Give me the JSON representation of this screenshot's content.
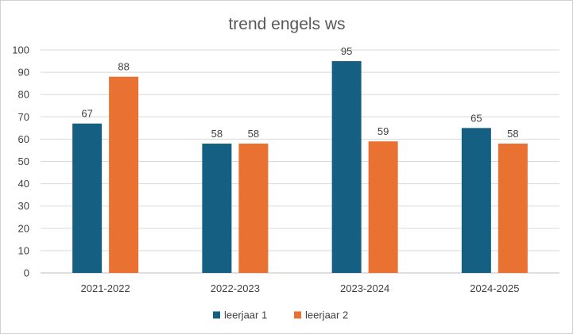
{
  "chart_data": {
    "type": "bar",
    "title": "trend engels ws",
    "categories": [
      "2021-2022",
      "2022-2023",
      "2023-2024",
      "2024-2025"
    ],
    "series": [
      {
        "name": "leerjaar 1",
        "color": "#156082",
        "values": [
          67,
          58,
          95,
          65
        ]
      },
      {
        "name": "leerjaar 2",
        "color": "#E97132",
        "values": [
          88,
          58,
          59,
          58
        ]
      }
    ],
    "ylim": [
      0,
      100
    ],
    "yticks": [
      0,
      10,
      20,
      30,
      40,
      50,
      60,
      70,
      80,
      90,
      100
    ],
    "grid": true,
    "data_labels": true,
    "legend_position": "bottom"
  }
}
